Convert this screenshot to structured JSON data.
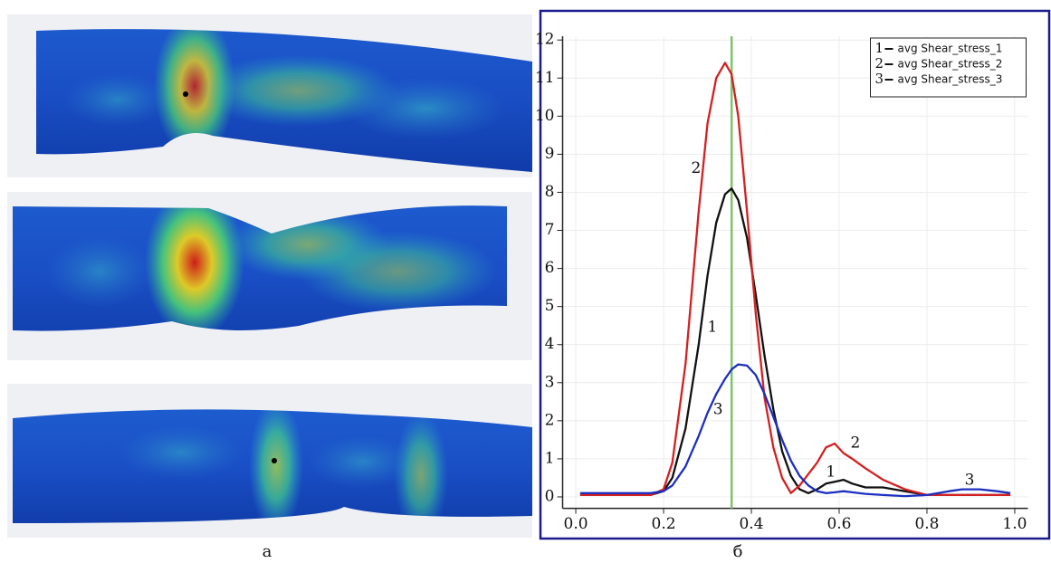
{
  "figure": {
    "caption_left": "а",
    "caption_right": "б"
  },
  "chart_data": {
    "type": "line",
    "x": [
      0.01,
      0.1,
      0.17,
      0.2,
      0.22,
      0.25,
      0.28,
      0.3,
      0.32,
      0.34,
      0.355,
      0.37,
      0.39,
      0.41,
      0.43,
      0.45,
      0.47,
      0.49,
      0.51,
      0.53,
      0.55,
      0.57,
      0.59,
      0.61,
      0.63,
      0.66,
      0.7,
      0.75,
      0.8,
      0.85,
      0.88,
      0.92,
      0.96,
      0.99
    ],
    "series": [
      {
        "name": "avg Shear_stress_1",
        "label": "1",
        "color": "#111111",
        "values": [
          0.05,
          0.05,
          0.05,
          0.15,
          0.5,
          1.8,
          4.0,
          5.8,
          7.2,
          7.95,
          8.1,
          7.8,
          6.8,
          5.3,
          3.7,
          2.3,
          1.2,
          0.55,
          0.2,
          0.1,
          0.2,
          0.35,
          0.4,
          0.45,
          0.35,
          0.25,
          0.25,
          0.15,
          0.05,
          0.05,
          0.05,
          0.05,
          0.05,
          0.05
        ]
      },
      {
        "name": "avg Shear_stress_2",
        "label": "2",
        "color": "#d42020",
        "values": [
          0.05,
          0.05,
          0.05,
          0.2,
          0.9,
          3.5,
          7.5,
          9.8,
          11.0,
          11.4,
          11.1,
          10.0,
          7.5,
          4.8,
          2.6,
          1.3,
          0.5,
          0.1,
          0.3,
          0.6,
          0.9,
          1.3,
          1.4,
          1.15,
          1.0,
          0.75,
          0.45,
          0.2,
          0.05,
          0.05,
          0.05,
          0.05,
          0.05,
          0.05
        ]
      },
      {
        "name": "avg Shear_stress_3",
        "label": "3",
        "color": "#1c2fbf",
        "values": [
          0.1,
          0.1,
          0.1,
          0.15,
          0.3,
          0.8,
          1.6,
          2.2,
          2.7,
          3.1,
          3.35,
          3.48,
          3.45,
          3.2,
          2.7,
          2.1,
          1.5,
          0.95,
          0.55,
          0.3,
          0.15,
          0.1,
          0.12,
          0.15,
          0.12,
          0.08,
          0.05,
          0.02,
          0.05,
          0.15,
          0.2,
          0.2,
          0.15,
          0.1
        ]
      }
    ],
    "xlim": [
      -0.03,
      1.03
    ],
    "ylim": [
      -0.3,
      12.1
    ],
    "xticks": [
      {
        "value": 0,
        "label": "0.0"
      },
      0.2,
      0.4,
      0.6,
      0.8,
      {
        "value": 1,
        "label": "1.0"
      }
    ],
    "yticks": [
      0,
      1,
      2,
      3,
      4,
      5,
      6,
      7,
      8,
      9,
      10,
      11,
      12
    ],
    "grid": true,
    "legend": "upper right",
    "vline": {
      "x": 0.355,
      "color": "#7cc46a"
    },
    "annotations": [
      {
        "text": "2",
        "x": 0.274,
        "y": 8.62
      },
      {
        "text": "1",
        "x": 0.311,
        "y": 4.44
      },
      {
        "text": "3",
        "x": 0.324,
        "y": 2.28
      },
      {
        "text": "2",
        "x": 0.637,
        "y": 1.4
      },
      {
        "text": "1",
        "x": 0.581,
        "y": 0.64
      },
      {
        "text": "3",
        "x": 0.897,
        "y": 0.43
      }
    ]
  }
}
